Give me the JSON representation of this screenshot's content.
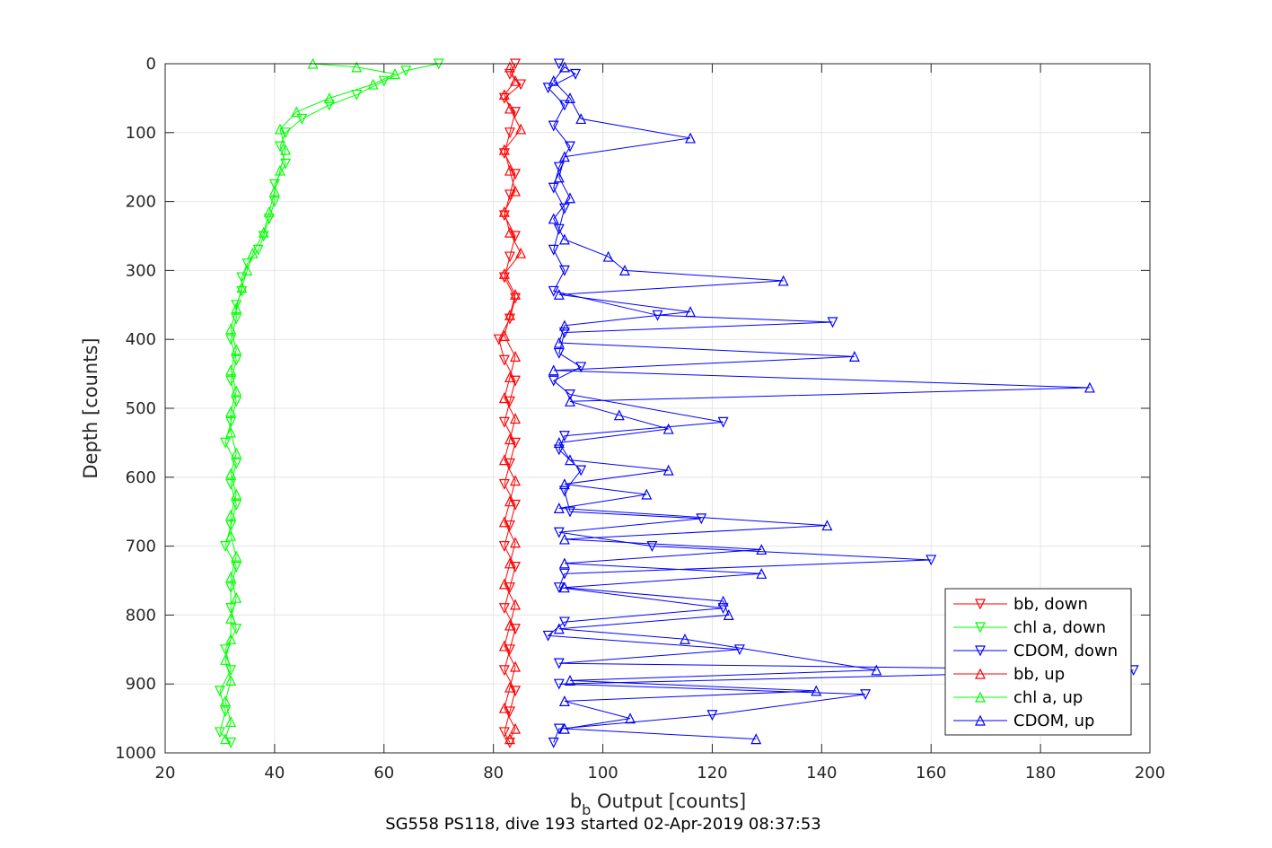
{
  "chart_data": {
    "type": "line",
    "title": "",
    "caption": "SG558 PS118, dive 193 started 02-Apr-2019 08:37:53",
    "xlabel": "b",
    "xlabel_sub": "b",
    "xlabel_rest": " Output [counts]",
    "ylabel": "Depth [counts]",
    "xlim": [
      20,
      200
    ],
    "ylim": [
      0,
      1000
    ],
    "y_reversed": true,
    "grid": true,
    "x_ticks": [
      "20",
      "40",
      "60",
      "80",
      "100",
      "120",
      "140",
      "160",
      "180",
      "200"
    ],
    "y_ticks": [
      "0",
      "100",
      "200",
      "300",
      "400",
      "500",
      "600",
      "700",
      "800",
      "900",
      "1000"
    ],
    "legend_position": "bottom-right",
    "colors": {
      "bb": "#ff0000",
      "chl": "#00ff00",
      "cdom": "#0000ff"
    },
    "series": [
      {
        "name": "bb, down",
        "color": "#ff0000",
        "marker": "triangle-down",
        "points": [
          [
            84,
            0
          ],
          [
            83,
            15
          ],
          [
            85,
            30
          ],
          [
            82,
            50
          ],
          [
            84,
            70
          ],
          [
            83,
            100
          ],
          [
            82,
            130
          ],
          [
            84,
            160
          ],
          [
            83,
            190
          ],
          [
            82,
            220
          ],
          [
            84,
            250
          ],
          [
            83,
            280
          ],
          [
            82,
            310
          ],
          [
            84,
            340
          ],
          [
            83,
            370
          ],
          [
            81,
            400
          ],
          [
            82,
            430
          ],
          [
            84,
            460
          ],
          [
            83,
            490
          ],
          [
            82,
            520
          ],
          [
            84,
            550
          ],
          [
            83,
            580
          ],
          [
            82,
            610
          ],
          [
            84,
            640
          ],
          [
            83,
            670
          ],
          [
            82,
            700
          ],
          [
            84,
            730
          ],
          [
            83,
            760
          ],
          [
            82,
            790
          ],
          [
            84,
            820
          ],
          [
            83,
            850
          ],
          [
            82,
            880
          ],
          [
            84,
            910
          ],
          [
            83,
            940
          ],
          [
            82,
            970
          ],
          [
            83,
            985
          ]
        ]
      },
      {
        "name": "chl a, down",
        "color": "#00ff00",
        "marker": "triangle-down",
        "points": [
          [
            70,
            0
          ],
          [
            64,
            10
          ],
          [
            60,
            25
          ],
          [
            55,
            45
          ],
          [
            50,
            60
          ],
          [
            45,
            80
          ],
          [
            42,
            100
          ],
          [
            41,
            120
          ],
          [
            42,
            145
          ],
          [
            40,
            175
          ],
          [
            40,
            200
          ],
          [
            39,
            225
          ],
          [
            38,
            250
          ],
          [
            37,
            270
          ],
          [
            35,
            290
          ],
          [
            34,
            310
          ],
          [
            34,
            330
          ],
          [
            33,
            350
          ],
          [
            33,
            370
          ],
          [
            32,
            400
          ],
          [
            33,
            430
          ],
          [
            32,
            460
          ],
          [
            33,
            490
          ],
          [
            32,
            520
          ],
          [
            31,
            550
          ],
          [
            33,
            580
          ],
          [
            32,
            610
          ],
          [
            33,
            640
          ],
          [
            32,
            670
          ],
          [
            31,
            700
          ],
          [
            33,
            730
          ],
          [
            32,
            760
          ],
          [
            32,
            790
          ],
          [
            33,
            820
          ],
          [
            31,
            850
          ],
          [
            32,
            880
          ],
          [
            30,
            910
          ],
          [
            31,
            940
          ],
          [
            30,
            970
          ],
          [
            32,
            985
          ]
        ]
      },
      {
        "name": "CDOM, down",
        "color": "#0000ff",
        "marker": "triangle-down",
        "points": [
          [
            92,
            0
          ],
          [
            95,
            15
          ],
          [
            90,
            35
          ],
          [
            93,
            60
          ],
          [
            91,
            90
          ],
          [
            94,
            120
          ],
          [
            92,
            150
          ],
          [
            91,
            180
          ],
          [
            93,
            210
          ],
          [
            92,
            240
          ],
          [
            91,
            270
          ],
          [
            93,
            300
          ],
          [
            91,
            330
          ],
          [
            110,
            365
          ],
          [
            142,
            375
          ],
          [
            93,
            390
          ],
          [
            92,
            420
          ],
          [
            96,
            440
          ],
          [
            91,
            460
          ],
          [
            94,
            480
          ],
          [
            122,
            520
          ],
          [
            93,
            540
          ],
          [
            92,
            560
          ],
          [
            96,
            590
          ],
          [
            93,
            620
          ],
          [
            94,
            650
          ],
          [
            118,
            660
          ],
          [
            92,
            680
          ],
          [
            109,
            700
          ],
          [
            160,
            720
          ],
          [
            93,
            740
          ],
          [
            92,
            760
          ],
          [
            122,
            790
          ],
          [
            93,
            810
          ],
          [
            90,
            830
          ],
          [
            125,
            850
          ],
          [
            92,
            870
          ],
          [
            197,
            880
          ],
          [
            92,
            900
          ],
          [
            148,
            915
          ],
          [
            120,
            945
          ],
          [
            92,
            965
          ],
          [
            91,
            985
          ]
        ]
      },
      {
        "name": "bb, up",
        "color": "#ff0000",
        "marker": "triangle-up",
        "points": [
          [
            83,
            5
          ],
          [
            84,
            25
          ],
          [
            82,
            45
          ],
          [
            83,
            65
          ],
          [
            85,
            95
          ],
          [
            82,
            125
          ],
          [
            83,
            155
          ],
          [
            84,
            185
          ],
          [
            82,
            215
          ],
          [
            83,
            245
          ],
          [
            85,
            275
          ],
          [
            82,
            305
          ],
          [
            84,
            335
          ],
          [
            83,
            365
          ],
          [
            82,
            395
          ],
          [
            84,
            425
          ],
          [
            83,
            455
          ],
          [
            82,
            485
          ],
          [
            84,
            515
          ],
          [
            83,
            545
          ],
          [
            82,
            575
          ],
          [
            84,
            605
          ],
          [
            83,
            635
          ],
          [
            82,
            665
          ],
          [
            84,
            695
          ],
          [
            83,
            725
          ],
          [
            82,
            755
          ],
          [
            84,
            785
          ],
          [
            83,
            815
          ],
          [
            82,
            845
          ],
          [
            84,
            875
          ],
          [
            83,
            905
          ],
          [
            82,
            935
          ],
          [
            84,
            965
          ],
          [
            83,
            980
          ]
        ]
      },
      {
        "name": "chl a, up",
        "color": "#00ff00",
        "marker": "triangle-up",
        "points": [
          [
            47,
            0
          ],
          [
            55,
            5
          ],
          [
            62,
            15
          ],
          [
            58,
            30
          ],
          [
            50,
            50
          ],
          [
            44,
            70
          ],
          [
            41,
            95
          ],
          [
            42,
            125
          ],
          [
            41,
            155
          ],
          [
            40,
            185
          ],
          [
            39,
            215
          ],
          [
            38,
            245
          ],
          [
            36,
            275
          ],
          [
            35,
            300
          ],
          [
            34,
            325
          ],
          [
            33,
            355
          ],
          [
            32,
            385
          ],
          [
            33,
            415
          ],
          [
            32,
            445
          ],
          [
            33,
            475
          ],
          [
            32,
            505
          ],
          [
            32,
            535
          ],
          [
            33,
            565
          ],
          [
            32,
            595
          ],
          [
            33,
            625
          ],
          [
            32,
            655
          ],
          [
            32,
            685
          ],
          [
            33,
            715
          ],
          [
            32,
            745
          ],
          [
            33,
            775
          ],
          [
            32,
            805
          ],
          [
            32,
            835
          ],
          [
            31,
            865
          ],
          [
            32,
            895
          ],
          [
            31,
            925
          ],
          [
            32,
            955
          ],
          [
            31,
            980
          ]
        ]
      },
      {
        "name": "CDOM, up",
        "color": "#0000ff",
        "marker": "triangle-up",
        "points": [
          [
            93,
            5
          ],
          [
            91,
            25
          ],
          [
            94,
            50
          ],
          [
            96,
            80
          ],
          [
            116,
            108
          ],
          [
            93,
            135
          ],
          [
            92,
            165
          ],
          [
            94,
            195
          ],
          [
            91,
            225
          ],
          [
            93,
            255
          ],
          [
            101,
            280
          ],
          [
            104,
            300
          ],
          [
            133,
            315
          ],
          [
            92,
            335
          ],
          [
            116,
            360
          ],
          [
            93,
            380
          ],
          [
            92,
            405
          ],
          [
            146,
            425
          ],
          [
            91,
            445
          ],
          [
            189,
            470
          ],
          [
            94,
            490
          ],
          [
            103,
            510
          ],
          [
            112,
            530
          ],
          [
            92,
            550
          ],
          [
            94,
            575
          ],
          [
            112,
            590
          ],
          [
            93,
            610
          ],
          [
            108,
            625
          ],
          [
            92,
            645
          ],
          [
            141,
            670
          ],
          [
            93,
            690
          ],
          [
            129,
            705
          ],
          [
            93,
            725
          ],
          [
            129,
            740
          ],
          [
            93,
            760
          ],
          [
            122,
            780
          ],
          [
            123,
            800
          ],
          [
            92,
            820
          ],
          [
            115,
            835
          ],
          [
            150,
            880
          ],
          [
            94,
            895
          ],
          [
            139,
            910
          ],
          [
            93,
            925
          ],
          [
            105,
            950
          ],
          [
            93,
            965
          ],
          [
            128,
            980
          ]
        ]
      }
    ]
  }
}
